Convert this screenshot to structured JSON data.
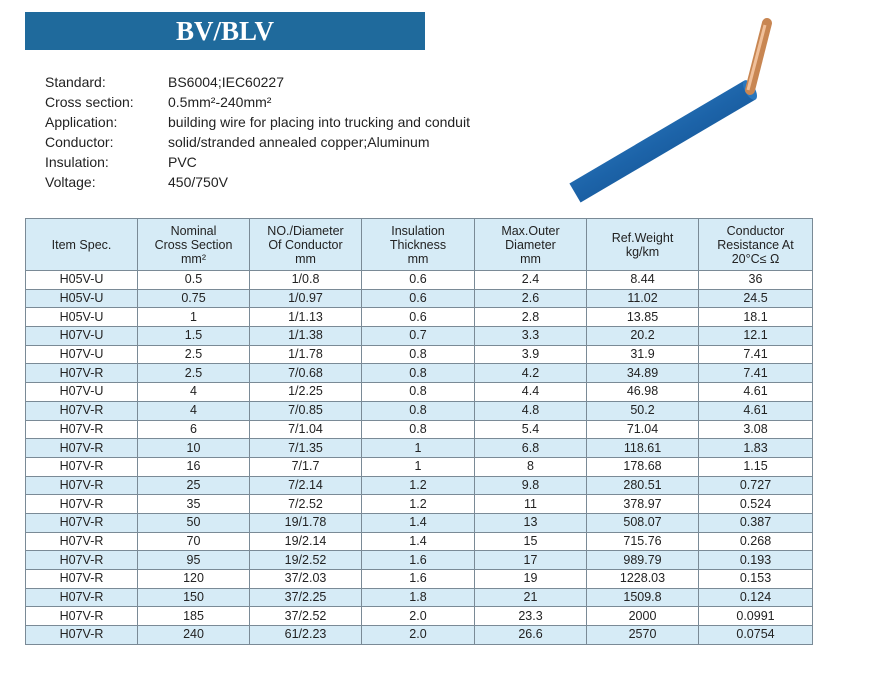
{
  "header": {
    "title": "BV/BLV"
  },
  "specs": [
    {
      "label": "Standard:",
      "value": "BS6004;IEC60227"
    },
    {
      "label": "Cross section:",
      "value": "0.5mm²-240mm²"
    },
    {
      "label": "Application:",
      "value": "building wire for placing into trucking and conduit"
    },
    {
      "label": "Conductor:",
      "value": "solid/stranded annealed copper;Aluminum"
    },
    {
      "label": "Insulation:",
      "value": "PVC"
    },
    {
      "label": "Voltage:",
      "value": "450/750V"
    }
  ],
  "table": {
    "columns": [
      [
        "Item Spec."
      ],
      [
        "Nominal",
        "Cross Section",
        "mm²"
      ],
      [
        "NO./Diameter",
        "Of Conductor",
        "mm"
      ],
      [
        "Insulation",
        "Thickness",
        "mm"
      ],
      [
        "Max.Outer",
        "Diameter",
        "mm"
      ],
      [
        "Ref.Weight",
        "kg/km"
      ],
      [
        "Conductor",
        "Resistance At",
        "20°C≤ Ω"
      ]
    ],
    "rows": [
      [
        "H05V-U",
        "0.5",
        "1/0.8",
        "0.6",
        "2.4",
        "8.44",
        "36"
      ],
      [
        "H05V-U",
        "0.75",
        "1/0.97",
        "0.6",
        "2.6",
        "11.02",
        "24.5"
      ],
      [
        "H05V-U",
        "1",
        "1/1.13",
        "0.6",
        "2.8",
        "13.85",
        "18.1"
      ],
      [
        "H07V-U",
        "1.5",
        "1/1.38",
        "0.7",
        "3.3",
        "20.2",
        "12.1"
      ],
      [
        "H07V-U",
        "2.5",
        "1/1.78",
        "0.8",
        "3.9",
        "31.9",
        "7.41"
      ],
      [
        "H07V-R",
        "2.5",
        "7/0.68",
        "0.8",
        "4.2",
        "34.89",
        "7.41"
      ],
      [
        "H07V-U",
        "4",
        "1/2.25",
        "0.8",
        "4.4",
        "46.98",
        "4.61"
      ],
      [
        "H07V-R",
        "4",
        "7/0.85",
        "0.8",
        "4.8",
        "50.2",
        "4.61"
      ],
      [
        "H07V-R",
        "6",
        "7/1.04",
        "0.8",
        "5.4",
        "71.04",
        "3.08"
      ],
      [
        "H07V-R",
        "10",
        "7/1.35",
        "1",
        "6.8",
        "118.61",
        "1.83"
      ],
      [
        "H07V-R",
        "16",
        "7/1.7",
        "1",
        "8",
        "178.68",
        "1.15"
      ],
      [
        "H07V-R",
        "25",
        "7/2.14",
        "1.2",
        "9.8",
        "280.51",
        "0.727"
      ],
      [
        "H07V-R",
        "35",
        "7/2.52",
        "1.2",
        "11",
        "378.97",
        "0.524"
      ],
      [
        "H07V-R",
        "50",
        "19/1.78",
        "1.4",
        "13",
        "508.07",
        "0.387"
      ],
      [
        "H07V-R",
        "70",
        "19/2.14",
        "1.4",
        "15",
        "715.76",
        "0.268"
      ],
      [
        "H07V-R",
        "95",
        "19/2.52",
        "1.6",
        "17",
        "989.79",
        "0.193"
      ],
      [
        "H07V-R",
        "120",
        "37/2.03",
        "1.6",
        "19",
        "1228.03",
        "0.153"
      ],
      [
        "H07V-R",
        "150",
        "37/2.25",
        "1.8",
        "21",
        "1509.8",
        "0.124"
      ],
      [
        "H07V-R",
        "185",
        "37/2.52",
        "2.0",
        "23.3",
        "2000",
        "0.0991"
      ],
      [
        "H07V-R",
        "240",
        "61/2.23",
        "2.0",
        "26.6",
        "2570",
        "0.0754"
      ]
    ]
  }
}
